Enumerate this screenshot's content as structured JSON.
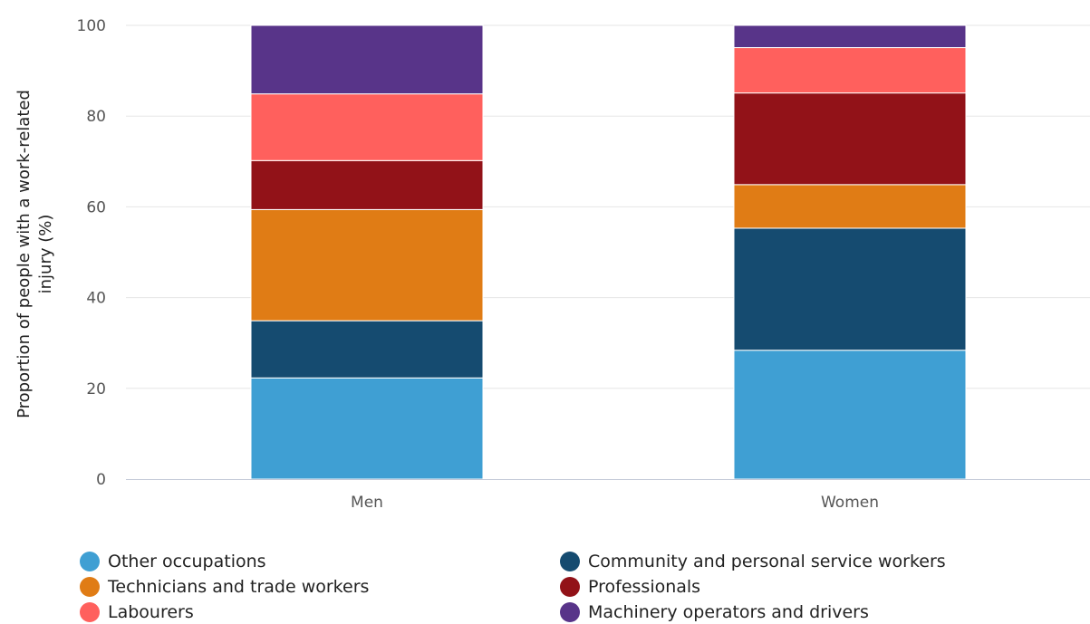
{
  "chart_data": {
    "type": "bar",
    "stacked": true,
    "categories": [
      "Men",
      "Women"
    ],
    "ylabel": "Proportion of people with a work-related injury (%)",
    "xlabel": "",
    "ylim": [
      0,
      100
    ],
    "yticks": [
      0,
      20,
      40,
      60,
      80,
      100
    ],
    "grid": true,
    "legend_position": "bottom",
    "series": [
      {
        "name": "Other occupations",
        "color": "#3f9fd3",
        "values": [
          22.3,
          28.4
        ]
      },
      {
        "name": "Community and personal service workers",
        "color": "#154b70",
        "values": [
          12.6,
          26.9
        ]
      },
      {
        "name": "Technicians and trade workers",
        "color": "#e07c15",
        "values": [
          24.5,
          9.6
        ]
      },
      {
        "name": "Professionals",
        "color": "#921218",
        "values": [
          10.8,
          20.2
        ]
      },
      {
        "name": "Labourers",
        "color": "#ff605d",
        "values": [
          14.7,
          10.0
        ]
      },
      {
        "name": "Machinery operators and drivers",
        "color": "#583489",
        "values": [
          15.1,
          4.9
        ]
      }
    ]
  },
  "legend_order": [
    0,
    1,
    2,
    3,
    4,
    5
  ]
}
